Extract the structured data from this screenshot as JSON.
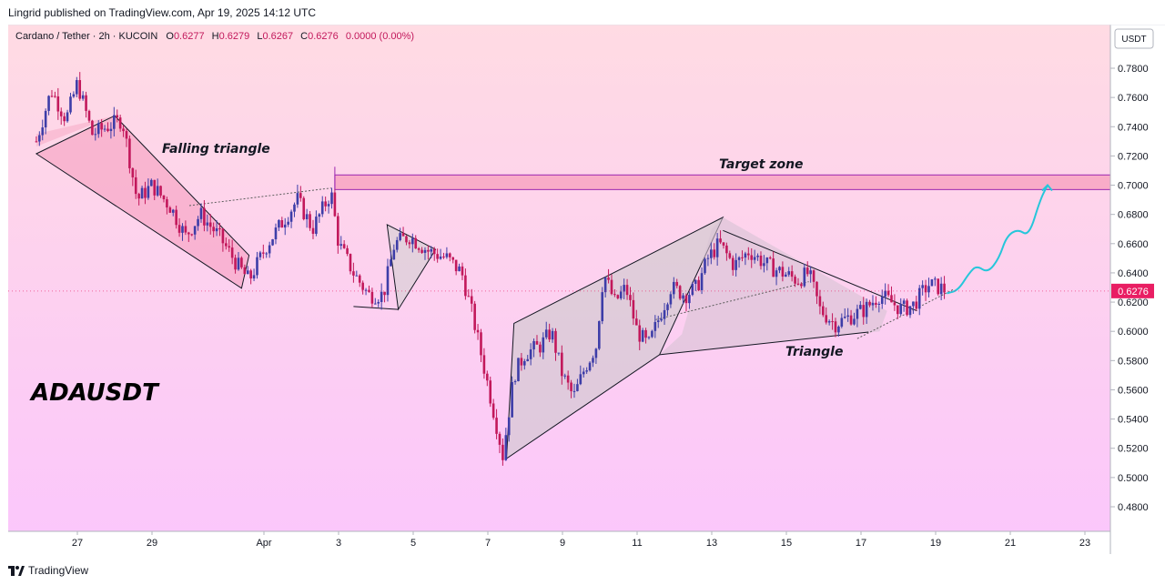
{
  "header": {
    "publisher_text": "Lingrid published on TradingView.com, Apr 19, 2025 14:12 UTC"
  },
  "legend": {
    "symbol_text": "Cardano / Tether · 2h · KUCOIN",
    "open_label": "O",
    "open": "0.6277",
    "high_label": "H",
    "high": "0.6279",
    "low_label": "L",
    "low": "0.6267",
    "close_label": "C",
    "close": "0.6276",
    "change": "0.0000 (0.00%)"
  },
  "price_axis": {
    "currency": "USDT",
    "current_price": "0.6276"
  },
  "annotations": {
    "falling_triangle": "Falling triangle",
    "target_zone": "Target zone",
    "triangle": "Triangle",
    "ticker": "ADAUSDT"
  },
  "footer": {
    "brand": "TradingView"
  },
  "colors": {
    "bull": "#3d3da8",
    "bear": "#c2185b",
    "zone": "#f8a5c2",
    "zone_border": "#9c27b0",
    "price_tag": "#e91e63",
    "path": "#26c6da"
  },
  "chart_data": {
    "type": "candlestick",
    "ylim": [
      0.465,
      0.795
    ],
    "y_ticks": [
      "0.7800",
      "0.7600",
      "0.7400",
      "0.7200",
      "0.7000",
      "0.6800",
      "0.6600",
      "0.6400",
      "0.6200",
      "0.6000",
      "0.5800",
      "0.5600",
      "0.5400",
      "0.5200",
      "0.5000",
      "0.4800"
    ],
    "x_labels": [
      {
        "label": "27",
        "day": 27
      },
      {
        "label": "29",
        "day": 29
      },
      {
        "label": "Apr",
        "day": 32
      },
      {
        "label": "3",
        "day": 34
      },
      {
        "label": "5",
        "day": 36
      },
      {
        "label": "7",
        "day": 38
      },
      {
        "label": "9",
        "day": 40
      },
      {
        "label": "11",
        "day": 42
      },
      {
        "label": "13",
        "day": 44
      },
      {
        "label": "15",
        "day": 46
      },
      {
        "label": "17",
        "day": 48
      },
      {
        "label": "19",
        "day": 50
      },
      {
        "label": "21",
        "day": 52
      },
      {
        "label": "23",
        "day": 54
      }
    ],
    "price_path": [
      [
        25.9,
        0.73
      ],
      [
        26.3,
        0.765
      ],
      [
        26.7,
        0.745
      ],
      [
        27.0,
        0.77
      ],
      [
        27.4,
        0.735
      ],
      [
        27.8,
        0.74
      ],
      [
        28.2,
        0.745
      ],
      [
        28.6,
        0.69
      ],
      [
        29.0,
        0.7
      ],
      [
        29.5,
        0.685
      ],
      [
        29.9,
        0.665
      ],
      [
        30.3,
        0.68
      ],
      [
        30.8,
        0.665
      ],
      [
        31.3,
        0.645
      ],
      [
        31.6,
        0.635
      ],
      [
        32.1,
        0.66
      ],
      [
        32.5,
        0.675
      ],
      [
        32.9,
        0.69
      ],
      [
        33.3,
        0.67
      ],
      [
        33.6,
        0.685
      ],
      [
        33.8,
        0.695
      ],
      [
        34.0,
        0.66
      ],
      [
        34.4,
        0.64
      ],
      [
        34.8,
        0.625
      ],
      [
        35.2,
        0.625
      ],
      [
        35.5,
        0.66
      ],
      [
        35.9,
        0.665
      ],
      [
        36.4,
        0.655
      ],
      [
        36.9,
        0.65
      ],
      [
        37.3,
        0.64
      ],
      [
        37.6,
        0.61
      ],
      [
        37.9,
        0.575
      ],
      [
        38.2,
        0.54
      ],
      [
        38.4,
        0.515
      ],
      [
        38.7,
        0.57
      ],
      [
        39.0,
        0.585
      ],
      [
        39.4,
        0.59
      ],
      [
        39.7,
        0.6
      ],
      [
        40.0,
        0.57
      ],
      [
        40.3,
        0.555
      ],
      [
        40.6,
        0.575
      ],
      [
        40.9,
        0.59
      ],
      [
        41.1,
        0.64
      ],
      [
        41.4,
        0.62
      ],
      [
        41.7,
        0.63
      ],
      [
        42.0,
        0.6
      ],
      [
        42.3,
        0.59
      ],
      [
        42.6,
        0.61
      ],
      [
        42.9,
        0.63
      ],
      [
        43.3,
        0.625
      ],
      [
        43.6,
        0.63
      ],
      [
        43.9,
        0.65
      ],
      [
        44.2,
        0.66
      ],
      [
        44.6,
        0.645
      ],
      [
        45.0,
        0.655
      ],
      [
        45.5,
        0.645
      ],
      [
        45.9,
        0.64
      ],
      [
        46.3,
        0.635
      ],
      [
        46.6,
        0.64
      ],
      [
        46.9,
        0.615
      ],
      [
        47.3,
        0.605
      ],
      [
        47.7,
        0.61
      ],
      [
        48.1,
        0.615
      ],
      [
        48.5,
        0.625
      ],
      [
        48.8,
        0.62
      ],
      [
        49.1,
        0.615
      ],
      [
        49.4,
        0.618
      ],
      [
        49.8,
        0.632
      ],
      [
        50.1,
        0.63
      ],
      [
        50.3,
        0.6276
      ]
    ],
    "projection": [
      [
        50.3,
        0.626
      ],
      [
        50.6,
        0.628
      ],
      [
        50.9,
        0.64
      ],
      [
        51.1,
        0.645
      ],
      [
        51.4,
        0.64
      ],
      [
        51.7,
        0.65
      ],
      [
        51.9,
        0.665
      ],
      [
        52.2,
        0.67
      ],
      [
        52.5,
        0.665
      ],
      [
        52.8,
        0.69
      ],
      [
        53.0,
        0.7
      ]
    ],
    "target_zone": {
      "from_day": 33.9,
      "to_day": 55.2,
      "low": 0.697,
      "high": 0.707
    },
    "current_price": 0.6276
  }
}
